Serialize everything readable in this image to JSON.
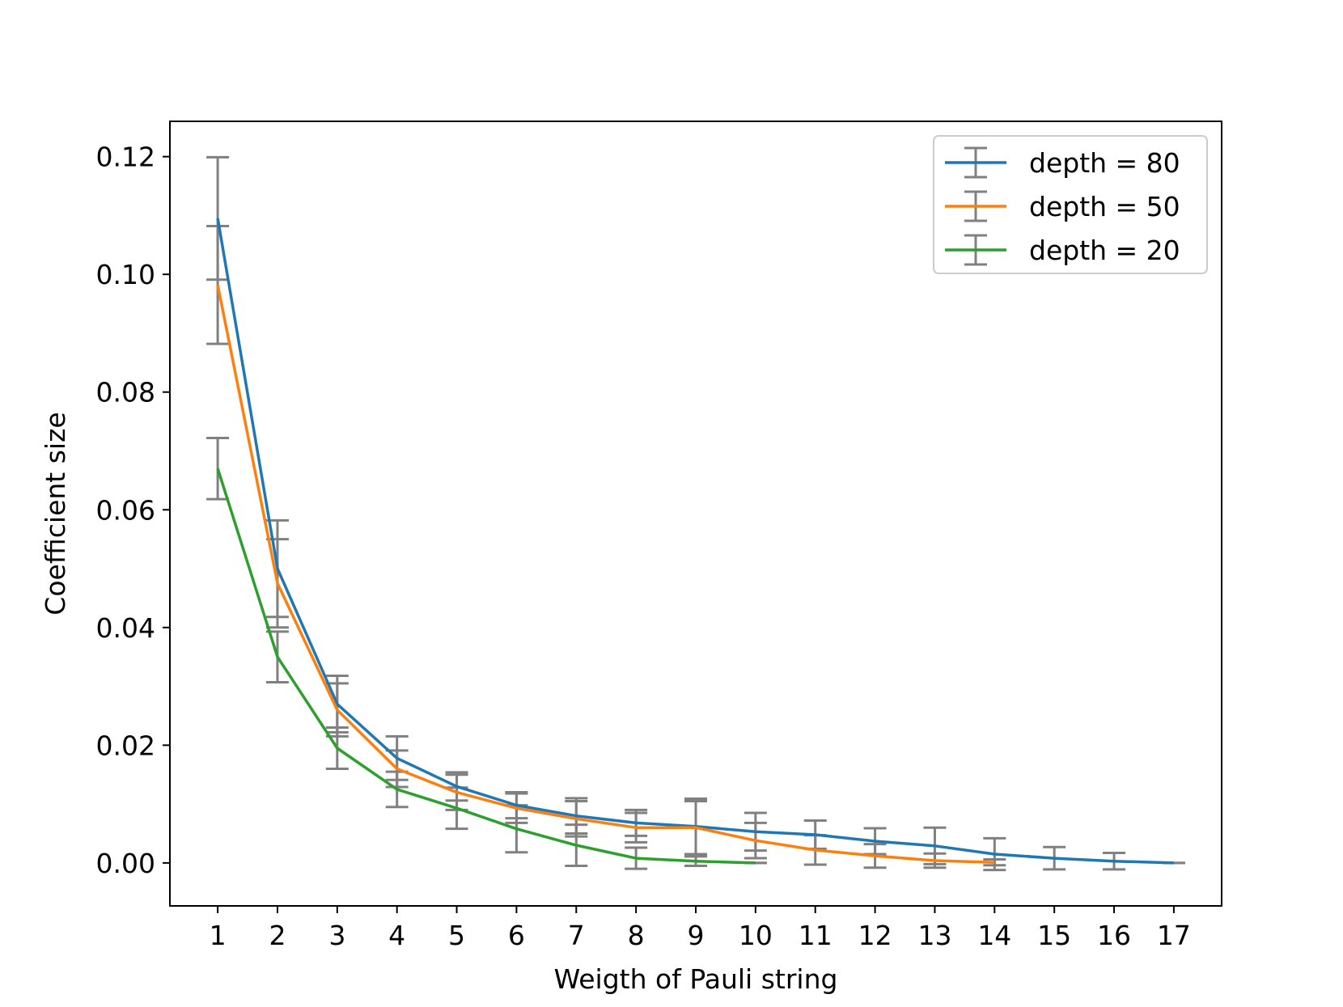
{
  "chart_data": {
    "type": "line",
    "title": "",
    "xlabel": "Weigth of Pauli string",
    "ylabel": "Coefficient size",
    "xlim": [
      0.2,
      17.8
    ],
    "ylim": [
      -0.0073,
      0.126
    ],
    "xticks": [
      1,
      2,
      3,
      4,
      5,
      6,
      7,
      8,
      9,
      10,
      11,
      12,
      13,
      14,
      15,
      16,
      17
    ],
    "xtick_labels": [
      "1",
      "2",
      "3",
      "4",
      "5",
      "6",
      "7",
      "8",
      "9",
      "10",
      "11",
      "12",
      "13",
      "14",
      "15",
      "16",
      "17"
    ],
    "yticks": [
      0.0,
      0.02,
      0.04,
      0.06,
      0.08,
      0.1,
      0.12
    ],
    "ytick_labels": [
      "0.00",
      "0.02",
      "0.04",
      "0.06",
      "0.08",
      "0.10",
      "0.12"
    ],
    "grid": false,
    "legend_position": "top-right",
    "errorbar_color": "#808080",
    "series": [
      {
        "name": "depth = 80",
        "color": "#1f77b4",
        "x": [
          1,
          2,
          3,
          4,
          5,
          6,
          7,
          8,
          9,
          10,
          11,
          12,
          13,
          14,
          15,
          16,
          17
        ],
        "y": [
          0.1095,
          0.05,
          0.027,
          0.0178,
          0.013,
          0.0098,
          0.008,
          0.0068,
          0.0062,
          0.0053,
          0.0048,
          0.0037,
          0.0029,
          0.0015,
          0.0008,
          0.0003,
          0.0
        ],
        "err": [
          0.0104,
          0.0082,
          0.0048,
          0.0037,
          0.0024,
          0.0022,
          0.003,
          0.0022,
          0.0047,
          0.0032,
          0.0024,
          0.0022,
          0.0031,
          0.0027,
          0.0019,
          0.0014,
          0.0
        ]
      },
      {
        "name": "depth = 50",
        "color": "#ff7f0e",
        "x": [
          1,
          2,
          3,
          4,
          5,
          6,
          7,
          8,
          9,
          10,
          11,
          12,
          13,
          14
        ],
        "y": [
          0.0982,
          0.0475,
          0.026,
          0.016,
          0.012,
          0.0093,
          0.0075,
          0.006,
          0.006,
          0.0038,
          0.0022,
          0.0012,
          0.0004,
          0.0001
        ],
        "err": [
          0.01,
          0.0075,
          0.0045,
          0.0031,
          0.003,
          0.0025,
          0.003,
          0.0025,
          0.0045,
          0.003,
          0.0025,
          0.002,
          0.0012,
          0.0005
        ]
      },
      {
        "name": "depth = 20",
        "color": "#2ca02c",
        "x": [
          1,
          2,
          3,
          4,
          5,
          6,
          7,
          8,
          9,
          10
        ],
        "y": [
          0.067,
          0.035,
          0.0195,
          0.0125,
          0.0093,
          0.0058,
          0.003,
          0.0008,
          0.0003,
          0.0
        ],
        "err": [
          0.0052,
          0.0043,
          0.0035,
          0.003,
          0.0035,
          0.004,
          0.0035,
          0.0018,
          0.0008,
          0.0
        ]
      }
    ]
  }
}
